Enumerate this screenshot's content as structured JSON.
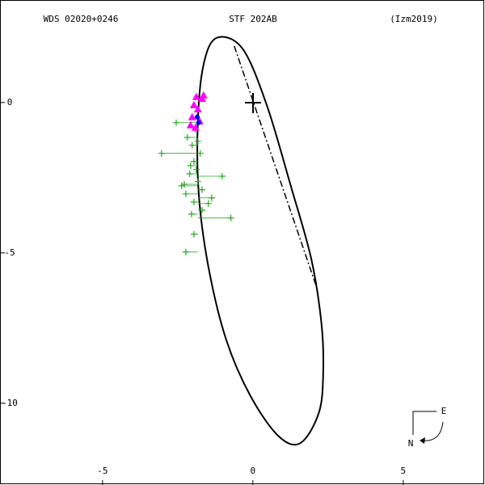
{
  "chart_data": {
    "type": "scatter",
    "title": "STF 202AB",
    "left_label": "WDS 02020+0246",
    "right_label": "(Izm2019)",
    "compass": {
      "east": "E",
      "north": "N"
    },
    "xlim": [
      -8.41,
      7.72
    ],
    "ylim": [
      -12.72,
      3.41
    ],
    "xticks": [
      -5,
      0,
      5
    ],
    "yticks": [
      0,
      -5,
      -10
    ],
    "series": [
      {
        "kind": "orbit",
        "color": "#000000",
        "x": [
          -1.21,
          -0.35,
          0.46,
          1.26,
          1.94,
          2.28,
          2.34,
          2.2,
          1.59,
          0.86,
          -0.08,
          -0.89,
          -1.48,
          -1.8,
          -1.83,
          -1.64
        ],
        "y": [
          2.15,
          1.8,
          -0.08,
          -2.77,
          -5.19,
          -7.34,
          -8.95,
          -10.3,
          -11.32,
          -11.1,
          -9.76,
          -7.88,
          -5.46,
          -3.04,
          -0.62,
          1.26
        ]
      },
      {
        "kind": "dashdot",
        "color": "#000000",
        "x": [
          -0.62,
          2.16
        ],
        "y": [
          1.88,
          -6.26
        ]
      },
      {
        "kind": "plus",
        "color": "#22aa22",
        "x": [
          -2.55,
          -3.04,
          -2.18,
          -2.02,
          -1.96,
          -2.1,
          -1.83,
          -2.37,
          -2.23,
          -1.69,
          -1.02,
          -1.37,
          -1.96,
          -1.48,
          -2.04,
          -1.69,
          -0.73,
          -1.96,
          -2.23,
          -1.83,
          -1.91,
          -1.75,
          -2.07,
          -2.28,
          -1.88
        ],
        "y": [
          -0.67,
          -1.69,
          -1.16,
          -1.42,
          -1.96,
          -2.37,
          -2.63,
          -2.77,
          -3.04,
          -2.9,
          -2.45,
          -3.17,
          -3.31,
          -3.36,
          -3.71,
          -3.58,
          -3.84,
          -4.38,
          -4.97,
          -1.29,
          -0.89,
          -1.69,
          -2.1,
          -2.72,
          -2.23
        ]
      },
      {
        "kind": "triangle",
        "color": "#ff00ff",
        "x": [
          -1.88,
          -1.69,
          -1.96,
          -1.83,
          -2.02,
          -1.77,
          -1.91,
          -1.64,
          -2.07
        ],
        "y": [
          0.19,
          0.13,
          -0.08,
          -0.22,
          -0.48,
          -0.62,
          -0.83,
          0.24,
          -0.75
        ]
      },
      {
        "kind": "circle",
        "color": "#0000ff",
        "x": [
          -1.85,
          -1.8
        ],
        "y": [
          -0.48,
          -0.67
        ]
      }
    ]
  }
}
